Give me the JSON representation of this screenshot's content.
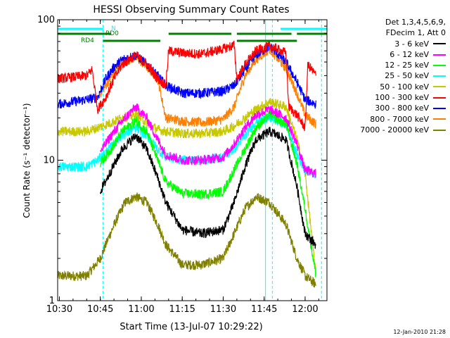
{
  "chart_data": {
    "type": "line",
    "title": "HESSI Observing Summary Count Rates",
    "xlabel": "Start Time (13-Jul-07 10:29:22)",
    "ylabel": "Count Rate (s⁻¹ detector⁻¹)",
    "yscale": "log",
    "ylim": [
      1,
      100
    ],
    "xlim": [
      "10:29:22",
      "12:08:00"
    ],
    "x_ticks": [
      "10:30",
      "10:45",
      "11:00",
      "11:15",
      "11:30",
      "11:45",
      "12:00"
    ],
    "y_ticks": [
      "1",
      "10",
      "100"
    ],
    "grid": false,
    "legend_position": "right",
    "legend_header": [
      "Det 1,3,4,5,6,9,",
      "FDecim 1, Att 0"
    ],
    "series": [
      {
        "name": "3 - 6 keV",
        "color": "#000000",
        "x": [
          "10:45",
          "10:49",
          "10:53",
          "10:58",
          "11:02",
          "11:06",
          "11:09",
          "11:15",
          "11:22",
          "11:30",
          "11:34",
          "11:38",
          "11:42",
          "11:47",
          "11:53",
          "11:57",
          "12:00",
          "12:04"
        ],
        "values": [
          6.0,
          8.5,
          12.0,
          15.0,
          12.0,
          7.5,
          5.0,
          3.2,
          3.0,
          3.2,
          5.0,
          9.0,
          14.0,
          16.0,
          14.0,
          6.5,
          3.0,
          2.5
        ]
      },
      {
        "name": "6 - 12 keV",
        "color": "#ff00ff",
        "x": [
          "10:45",
          "10:49",
          "10:53",
          "10:58",
          "11:02",
          "11:06",
          "11:09",
          "11:15",
          "11:22",
          "11:30",
          "11:34",
          "11:38",
          "11:42",
          "11:47",
          "11:53",
          "11:57",
          "12:00",
          "12:04"
        ],
        "values": [
          11.5,
          15.0,
          19.0,
          24.0,
          20.0,
          14.0,
          11.0,
          10.0,
          10.0,
          10.5,
          13.0,
          17.0,
          21.0,
          23.0,
          20.0,
          13.0,
          8.5,
          8.0
        ]
      },
      {
        "name": "12 - 25 keV",
        "color": "#00ff00",
        "x": [
          "10:45",
          "10:49",
          "10:53",
          "10:58",
          "11:02",
          "11:06",
          "11:09",
          "11:15",
          "11:22",
          "11:30",
          "11:34",
          "11:38",
          "11:42",
          "11:47",
          "11:53",
          "11:57",
          "12:00",
          "12:04"
        ],
        "values": [
          9.5,
          12.0,
          16.0,
          19.0,
          16.0,
          10.0,
          7.0,
          5.8,
          5.7,
          6.0,
          8.5,
          12.0,
          17.0,
          21.0,
          18.0,
          9.5,
          4.5,
          1.5
        ]
      },
      {
        "name": "25 - 50 keV",
        "color": "#00ffff",
        "x": [
          "10:29:22",
          "10:40",
          "10:44",
          "10:49",
          "10:53",
          "10:58",
          "11:02",
          "11:06",
          "11:09",
          "11:15",
          "11:22",
          "11:30",
          "11:34",
          "11:38",
          "11:42",
          "11:47",
          "11:53",
          "11:57",
          "12:00",
          "12:04"
        ],
        "values": [
          9.0,
          9.0,
          10.0,
          12.5,
          15.0,
          17.0,
          15.0,
          12.0,
          10.5,
          10.0,
          10.0,
          10.5,
          12.0,
          15.0,
          19.0,
          20.0,
          18.0,
          11.0,
          8.5,
          8.0
        ]
      },
      {
        "name": "50 - 100 keV",
        "color": "#c8c800",
        "x": [
          "10:29:22",
          "10:40",
          "10:44",
          "10:49",
          "10:53",
          "10:58",
          "11:02",
          "11:06",
          "11:09",
          "11:15",
          "11:22",
          "11:30",
          "11:34",
          "11:38",
          "11:42",
          "11:47",
          "11:53",
          "11:57",
          "12:00",
          "12:04"
        ],
        "values": [
          16.0,
          16.0,
          17.0,
          18.5,
          20.0,
          21.0,
          18.5,
          16.5,
          16.0,
          15.5,
          15.5,
          16.0,
          17.5,
          20.0,
          23.0,
          26.0,
          24.0,
          14.0,
          8.0,
          1.5
        ]
      },
      {
        "name": "100 - 300 keV",
        "color": "#ff0000",
        "x": [
          "10:29:22",
          "10:40",
          "10:42",
          "10:44",
          "10:47",
          "10:50",
          "10:53",
          "10:58",
          "11:02",
          "11:06",
          "11:09",
          "11:10",
          "11:15",
          "11:22",
          "11:30",
          "11:34",
          "11:35",
          "11:38",
          "11:42",
          "11:47",
          "11:53",
          "11:54",
          "11:57",
          "12:00",
          "12:01",
          "12:04"
        ],
        "values": [
          38.0,
          40.0,
          44.0,
          23.0,
          28.0,
          38.0,
          48.0,
          56.0,
          48.0,
          38.0,
          34.0,
          60.0,
          58.0,
          57.0,
          62.0,
          66.0,
          38.0,
          48.0,
          60.0,
          65.0,
          58.0,
          24.0,
          21.0,
          17.0,
          48.0,
          40.0
        ]
      },
      {
        "name": "300 - 800 keV",
        "color": "#0000ff",
        "x": [
          "10:29:22",
          "10:40",
          "10:44",
          "10:47",
          "10:50",
          "10:53",
          "10:58",
          "11:02",
          "11:06",
          "11:09",
          "11:15",
          "11:22",
          "11:30",
          "11:34",
          "11:38",
          "11:42",
          "11:47",
          "11:53",
          "11:57",
          "12:00",
          "12:04"
        ],
        "values": [
          25.0,
          27.0,
          28.0,
          38.0,
          46.0,
          52.0,
          56.0,
          48.0,
          40.0,
          34.0,
          30.0,
          30.0,
          31.0,
          34.0,
          44.0,
          56.0,
          65.0,
          50.0,
          36.0,
          27.0,
          25.0
        ]
      },
      {
        "name": "800 - 7000 keV",
        "color": "#ff8000",
        "x": [
          "10:45",
          "10:47",
          "10:50",
          "10:53",
          "10:58",
          "11:02",
          "11:06",
          "11:09",
          "11:15",
          "11:22",
          "11:30",
          "11:34",
          "11:38",
          "11:42",
          "11:47",
          "11:53",
          "11:57",
          "12:00",
          "12:04"
        ],
        "values": [
          30.0,
          34.0,
          42.0,
          50.0,
          54.0,
          46.0,
          38.0,
          20.0,
          19.0,
          18.5,
          19.5,
          24.0,
          40.0,
          52.0,
          62.0,
          45.0,
          30.0,
          21.0,
          18.0
        ]
      },
      {
        "name": "7000 - 20000 keV",
        "color": "#808000",
        "x": [
          "10:29:22",
          "10:40",
          "10:45",
          "10:48",
          "10:51",
          "10:54",
          "10:58",
          "11:02",
          "11:06",
          "11:09",
          "11:15",
          "11:22",
          "11:30",
          "11:34",
          "11:38",
          "11:42",
          "11:47",
          "11:53",
          "11:57",
          "12:00",
          "12:04"
        ],
        "values": [
          1.5,
          1.5,
          2.0,
          2.8,
          3.8,
          5.0,
          5.5,
          5.0,
          3.5,
          2.5,
          1.8,
          1.8,
          2.0,
          3.0,
          4.5,
          5.5,
          5.0,
          3.5,
          2.0,
          1.5,
          1.3
        ]
      }
    ],
    "mode_bars": [
      {
        "label": "N",
        "color": "#00ffff",
        "segments": [
          [
            "10:29:22",
            "10:46"
          ],
          [
            "11:51",
            "12:08"
          ]
        ]
      },
      {
        "label": "RD0",
        "color": "#008000",
        "segments": [
          [
            "10:29:22",
            "10:49"
          ],
          [
            "11:10",
            "11:33"
          ],
          [
            "11:35",
            "11:55"
          ],
          [
            "11:57",
            "12:08"
          ]
        ]
      },
      {
        "label": "RD4",
        "color": "#008000",
        "segments": [
          [
            "10:46",
            "11:07"
          ],
          [
            "11:35",
            "11:57"
          ]
        ]
      }
    ],
    "vlines": [
      {
        "color": "#00ffff",
        "style": "solid",
        "x": [
          "10:29:22",
          "11:45:30",
          "12:08"
        ]
      },
      {
        "color": "#00ffff",
        "style": "dashed",
        "x": [
          "10:46",
          "11:48",
          "12:06"
        ]
      }
    ]
  },
  "timestamp": "12-Jan-2010 21:28"
}
